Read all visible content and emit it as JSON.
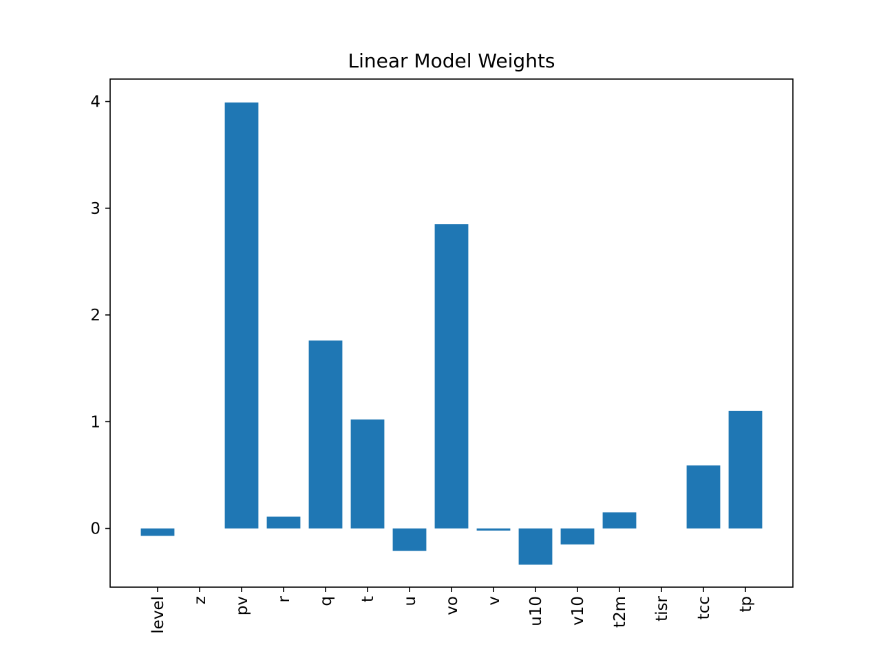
{
  "chart_data": {
    "type": "bar",
    "title": "Linear Model Weights",
    "xlabel": "",
    "ylabel": "",
    "categories": [
      "level",
      "z",
      "pv",
      "r",
      "q",
      "t",
      "u",
      "vo",
      "v",
      "u10",
      "v10",
      "t2m",
      "tisr",
      "tcc",
      "tp"
    ],
    "values": [
      -0.07,
      0.0,
      3.99,
      0.11,
      1.76,
      1.02,
      -0.21,
      2.85,
      -0.02,
      -0.34,
      -0.15,
      0.15,
      0.0,
      0.59,
      1.1
    ],
    "yticks": [
      0,
      1,
      2,
      3,
      4
    ],
    "ylim": [
      -0.55,
      4.21
    ],
    "grid": false,
    "bar_color": "#1f77b4"
  }
}
